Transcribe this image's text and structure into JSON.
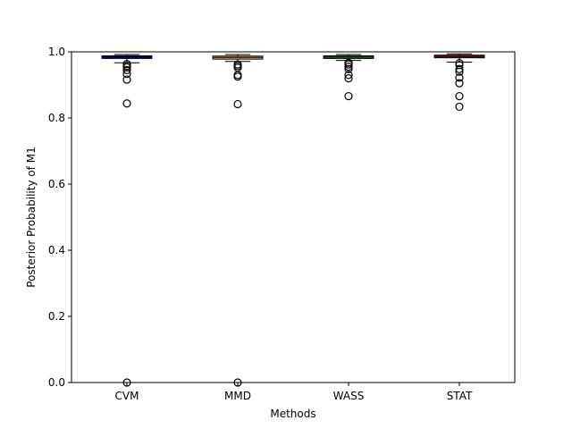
{
  "chart_data": {
    "type": "box",
    "xlabel": "Methods",
    "ylabel": "Posterior Probability of M1",
    "ylim": [
      0,
      1
    ],
    "yticks": [
      0.0,
      0.2,
      0.4,
      0.6,
      0.8,
      1.0
    ],
    "ytick_labels": [
      "0.0",
      "0.2",
      "0.4",
      "0.6",
      "0.8",
      "1.0"
    ],
    "categories": [
      "CVM",
      "MMD",
      "WASS",
      "STAT"
    ],
    "series": [
      {
        "color": "#0000cc",
        "whisker_low": 0.967,
        "q1": 0.98,
        "median": 0.984,
        "q3": 0.988,
        "whisker_high": 0.992,
        "outliers": [
          0.963,
          0.958,
          0.953,
          0.945,
          0.933,
          0.916,
          0.844,
          0.0
        ]
      },
      {
        "color": "#f5b36b",
        "whisker_low": 0.971,
        "q1": 0.978,
        "median": 0.983,
        "q3": 0.987,
        "whisker_high": 0.992,
        "outliers": [
          0.962,
          0.957,
          0.952,
          0.93,
          0.925,
          0.842,
          0.0
        ]
      },
      {
        "color": "#2e8b3a",
        "whisker_low": 0.974,
        "q1": 0.98,
        "median": 0.984,
        "q3": 0.988,
        "whisker_high": 0.992,
        "outliers": [
          0.967,
          0.962,
          0.955,
          0.948,
          0.93,
          0.92,
          0.866
        ]
      },
      {
        "color": "#b22222",
        "whisker_low": 0.969,
        "q1": 0.982,
        "median": 0.986,
        "q3": 0.99,
        "whisker_high": 0.994,
        "outliers": [
          0.966,
          0.96,
          0.948,
          0.94,
          0.922,
          0.905,
          0.866,
          0.834
        ]
      }
    ],
    "grid": false
  }
}
